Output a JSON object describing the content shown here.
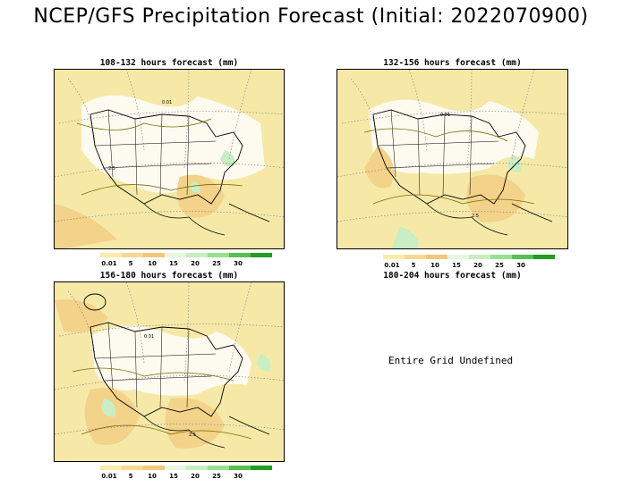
{
  "title": "NCEP/GFS Precipitation Forecast (Initial: 2022070900)",
  "panels": [
    {
      "title": "108-132 hours forecast (mm)"
    },
    {
      "title": "132-156 hours forecast (mm)"
    },
    {
      "title": "156-180 hours forecast (mm)"
    },
    {
      "title": "180-204 hours forecast (mm)",
      "message": "Entire Grid Undefined"
    }
  ],
  "colorbar": {
    "labels": [
      "0.01",
      "5",
      "10",
      "15",
      "20",
      "25",
      "30"
    ],
    "colors": [
      "#f8eca8",
      "#f5d990",
      "#f2c878",
      "#e8f5e0",
      "#c8eec0",
      "#98e090",
      "#58c050",
      "#20a020"
    ]
  },
  "contour_labels": [
    "0.01",
    "2.5"
  ],
  "colors": {
    "dry": "#fdfbf0",
    "light_rain": "#f6e9a8",
    "moderate_rain": "#f3d28a",
    "wet_green": "#c9eec4"
  }
}
